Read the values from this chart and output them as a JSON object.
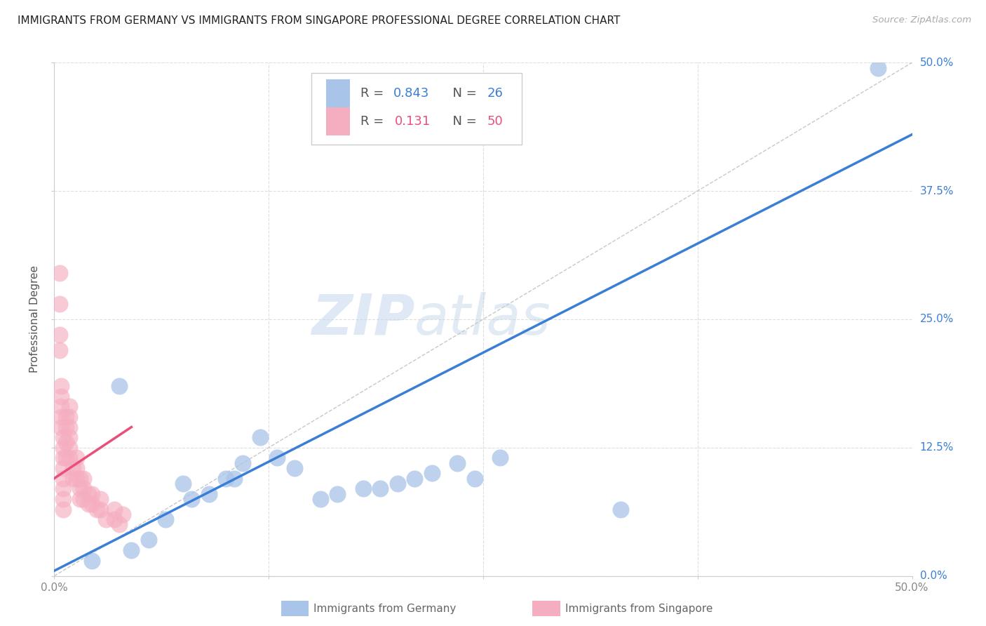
{
  "title": "IMMIGRANTS FROM GERMANY VS IMMIGRANTS FROM SINGAPORE PROFESSIONAL DEGREE CORRELATION CHART",
  "source": "Source: ZipAtlas.com",
  "ylabel": "Professional Degree",
  "xlim": [
    0.0,
    0.5
  ],
  "ylim": [
    0.0,
    0.5
  ],
  "xtick_vals": [
    0.0,
    0.125,
    0.25,
    0.375,
    0.5
  ],
  "ytick_vals": [
    0.0,
    0.125,
    0.25,
    0.375,
    0.5
  ],
  "legend_germany_R": "0.843",
  "legend_germany_N": "26",
  "legend_singapore_R": "0.131",
  "legend_singapore_N": "50",
  "germany_color": "#a8c4e8",
  "singapore_color": "#f5aec0",
  "germany_line_color": "#3a7fd5",
  "singapore_line_color": "#e8507a",
  "diagonal_color": "#c8c8c8",
  "watermark_zip": "ZIP",
  "watermark_atlas": "atlas",
  "germany_scatter_x": [
    0.48,
    0.022,
    0.045,
    0.055,
    0.065,
    0.08,
    0.09,
    0.1,
    0.11,
    0.13,
    0.14,
    0.155,
    0.165,
    0.18,
    0.19,
    0.2,
    0.21,
    0.22,
    0.235,
    0.245,
    0.26,
    0.038,
    0.075,
    0.105,
    0.33,
    0.12
  ],
  "germany_scatter_y": [
    0.495,
    0.015,
    0.025,
    0.035,
    0.055,
    0.075,
    0.08,
    0.095,
    0.11,
    0.115,
    0.105,
    0.075,
    0.08,
    0.085,
    0.085,
    0.09,
    0.095,
    0.1,
    0.11,
    0.095,
    0.115,
    0.185,
    0.09,
    0.095,
    0.065,
    0.135
  ],
  "singapore_scatter_x": [
    0.003,
    0.003,
    0.003,
    0.003,
    0.004,
    0.004,
    0.004,
    0.004,
    0.004,
    0.005,
    0.005,
    0.005,
    0.005,
    0.005,
    0.005,
    0.005,
    0.005,
    0.007,
    0.007,
    0.007,
    0.007,
    0.009,
    0.009,
    0.009,
    0.009,
    0.009,
    0.009,
    0.011,
    0.011,
    0.013,
    0.013,
    0.013,
    0.015,
    0.015,
    0.015,
    0.017,
    0.017,
    0.017,
    0.02,
    0.02,
    0.022,
    0.022,
    0.025,
    0.027,
    0.027,
    0.03,
    0.035,
    0.035,
    0.038,
    0.04
  ],
  "singapore_scatter_y": [
    0.295,
    0.265,
    0.235,
    0.22,
    0.185,
    0.175,
    0.165,
    0.155,
    0.145,
    0.135,
    0.125,
    0.115,
    0.105,
    0.095,
    0.085,
    0.075,
    0.065,
    0.155,
    0.145,
    0.13,
    0.115,
    0.165,
    0.155,
    0.145,
    0.135,
    0.125,
    0.115,
    0.105,
    0.095,
    0.115,
    0.105,
    0.095,
    0.095,
    0.085,
    0.075,
    0.095,
    0.085,
    0.075,
    0.08,
    0.07,
    0.08,
    0.07,
    0.065,
    0.075,
    0.065,
    0.055,
    0.065,
    0.055,
    0.05,
    0.06
  ],
  "germany_line_x": [
    0.0,
    0.5
  ],
  "germany_line_y": [
    0.005,
    0.43
  ],
  "singapore_line_x": [
    0.0,
    0.045
  ],
  "singapore_line_y": [
    0.095,
    0.145
  ],
  "background_color": "#ffffff",
  "grid_color": "#dedede"
}
